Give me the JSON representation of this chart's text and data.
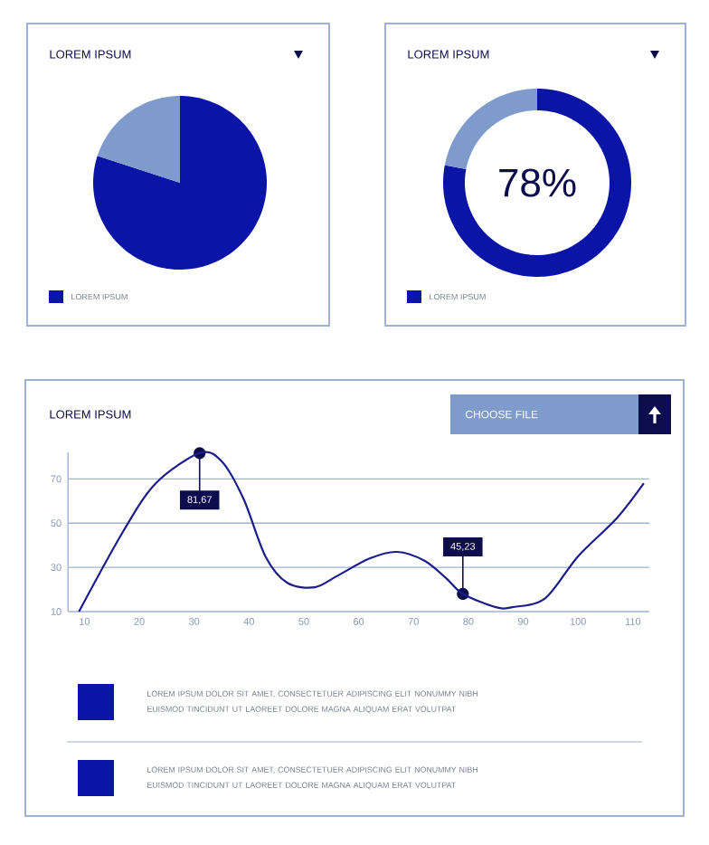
{
  "chart_data": [
    {
      "type": "pie",
      "title": "LOREM IPSUM",
      "categories": [
        "LOREM IPSUM",
        null
      ],
      "values": [
        80,
        20
      ],
      "colors": [
        "#0a14a6",
        "#7f9bcb"
      ],
      "legend": "bottom left"
    },
    {
      "type": "donut",
      "title": "LOREM IPSUM",
      "categories": [
        "LOREM IPSUM",
        null
      ],
      "values": [
        78,
        22
      ],
      "colors": [
        "#0a14a6",
        "#7f9bcb"
      ],
      "value_labels": [
        "78%",
        null
      ],
      "legend": "bottom left"
    },
    {
      "type": "line",
      "title": "LOREM IPSUM",
      "x": [
        9,
        17,
        23,
        31,
        35,
        39,
        43,
        47,
        52,
        56,
        62,
        67,
        72,
        76,
        79,
        85,
        88,
        94,
        100,
        107,
        112
      ],
      "series": [
        {
          "color": "#1c1c8a",
          "values": [
            10,
            46,
            68,
            81.67,
            78,
            61,
            35,
            23,
            21,
            26,
            34,
            37,
            33,
            25,
            18,
            12,
            12,
            16,
            35,
            52,
            68
          ]
        }
      ],
      "xlim": [
        7,
        113
      ],
      "ylim": [
        10,
        82
      ],
      "xticks": [
        10,
        20,
        30,
        40,
        50,
        60,
        70,
        80,
        90,
        100,
        110
      ],
      "yticks": [
        10,
        30,
        50,
        70
      ],
      "grid": "y",
      "annotations": [
        "CHOOSE FILE",
        {
          "text": "81,67",
          "x": 31,
          "y": 81.67
        },
        {
          "text": "45,23",
          "x": 79,
          "y": 18
        },
        "LOREM IPSUM DOLOR SIT AMET, CONSECTETUER ADIPISCING ELIT NONUMMY NIBH EUISMOD TINCIDUNT UT LAOREET DOLORE MAGNA ALIQUAM ERAT VOLUTPAT",
        "LOREM IPSUM DOLOR SIT AMET, CONSECTETUER ADIPISCING ELIT NONUMMY NIBH EUISMOD TINCIDUNT UT LAOREET DOLORE MAGNA ALIQUAM ERAT VOLUTPAT"
      ]
    }
  ]
}
